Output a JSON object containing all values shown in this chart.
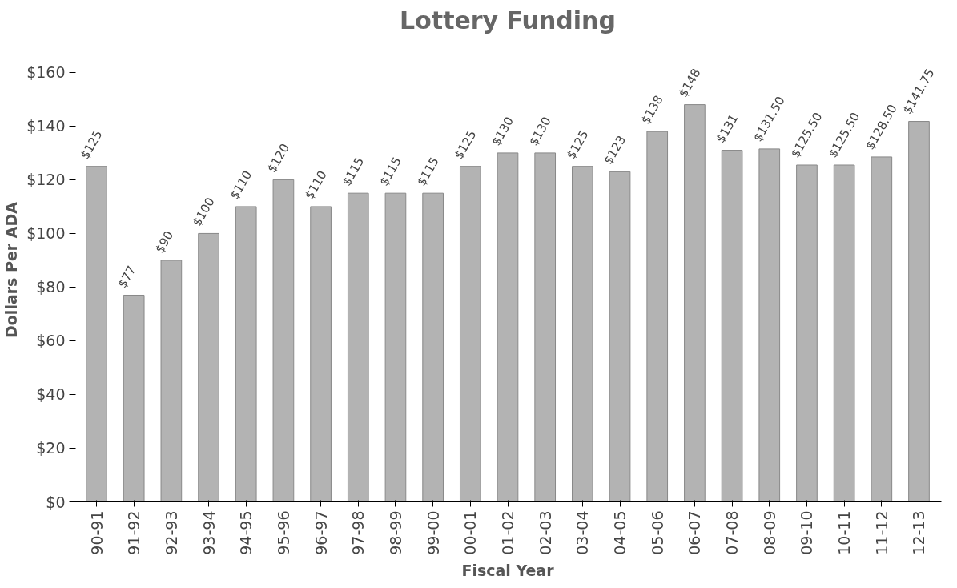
{
  "chart_data": {
    "type": "bar",
    "title": "Lottery Funding",
    "xlabel": "Fiscal Year",
    "ylabel": "Dollars Per ADA",
    "categories": [
      "90-91",
      "91-92",
      "92-93",
      "93-94",
      "94-95",
      "95-96",
      "96-97",
      "97-98",
      "98-99",
      "99-00",
      "00-01",
      "01-02",
      "02-03",
      "03-04",
      "04-05",
      "05-06",
      "06-07",
      "07-08",
      "08-09",
      "09-10",
      "10-11",
      "11-12",
      "12-13"
    ],
    "values": [
      125,
      77,
      90,
      100,
      110,
      120,
      110,
      115,
      115,
      115,
      125,
      130,
      130,
      125,
      123,
      138,
      148,
      131,
      131.5,
      125.5,
      125.5,
      128.5,
      141.75
    ],
    "value_labels": [
      "$125",
      "$77",
      "$90",
      "$100",
      "$110",
      "$120",
      "$110",
      "$115",
      "$115",
      "$115",
      "$125",
      "$130",
      "$130",
      "$125",
      "$123",
      "$138",
      "$148",
      "$131",
      "$131.50",
      "$125.50",
      "$125.50",
      "$128.50",
      "$141.75"
    ],
    "color": "#b3b3b3",
    "ylim": [
      0,
      160
    ],
    "yticks": [
      {
        "value": 0,
        "label": "$0"
      },
      {
        "value": 20,
        "label": "$20"
      },
      {
        "value": 40,
        "label": "$40"
      },
      {
        "value": 60,
        "label": "$60"
      },
      {
        "value": 80,
        "label": "$80"
      },
      {
        "value": 100,
        "label": "$100"
      },
      {
        "value": 120,
        "label": "$120"
      },
      {
        "value": 140,
        "label": "$140"
      },
      {
        "value": 160,
        "label": "$160"
      }
    ],
    "grid": false
  }
}
